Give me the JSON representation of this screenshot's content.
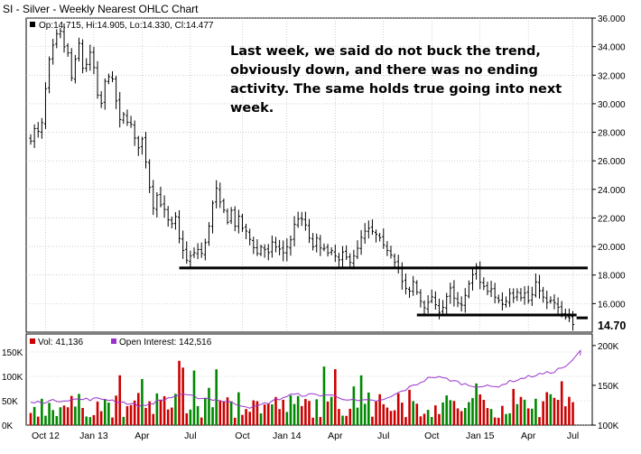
{
  "chart_data": {
    "type": "ohlc",
    "title": "SI - Silver - Weekly Nearest OHLC Chart",
    "ohlc_label": "Op:14.715, Hi:14.905, Lo:14.330, Cl:14.477",
    "last_price_tag": "14.70",
    "price_axis": {
      "ticks": [
        "36.000",
        "34.000",
        "32.000",
        "30.000",
        "28.000",
        "26.000",
        "24.000",
        "22.000",
        "20.000",
        "18.000",
        "16.000"
      ],
      "tick_values": [
        36,
        34,
        32,
        30,
        28,
        26,
        24,
        22,
        20,
        18,
        16
      ],
      "ylim": [
        14.0,
        36.0
      ]
    },
    "volume_axis_left": {
      "ticks": [
        "150K",
        "100K",
        "50K",
        "0K"
      ],
      "tick_values": [
        150000,
        100000,
        50000,
        0
      ],
      "ylim": [
        0,
        150000
      ]
    },
    "oi_axis_right": {
      "ticks": [
        "200K",
        "150K",
        "100K"
      ],
      "tick_values": [
        200000,
        150000,
        100000
      ],
      "ylim": [
        100000,
        210000
      ]
    },
    "x_labels": [
      "Oct 12",
      "Jan 13",
      "Apr",
      "Jul",
      "Oct",
      "Jan 14",
      "Apr",
      "Jul",
      "Oct",
      "Jan 15",
      "Apr",
      "Jul"
    ],
    "x_label_weeks": [
      4,
      17,
      30,
      43,
      57,
      69,
      82,
      95,
      108,
      121,
      134,
      146
    ],
    "total_weeks": 151,
    "price_anchors": [
      [
        0,
        27.5
      ],
      [
        1,
        28.2
      ],
      [
        2,
        28.0
      ],
      [
        3,
        28.6
      ],
      [
        4,
        31.0
      ],
      [
        5,
        33.0
      ],
      [
        6,
        34.0
      ],
      [
        7,
        34.8
      ],
      [
        8,
        35.0
      ],
      [
        9,
        34.0
      ],
      [
        10,
        33.5
      ],
      [
        11,
        31.8
      ],
      [
        12,
        33.0
      ],
      [
        13,
        34.2
      ],
      [
        14,
        32.5
      ],
      [
        15,
        32.8
      ],
      [
        16,
        33.5
      ],
      [
        17,
        32.5
      ],
      [
        18,
        30.5
      ],
      [
        19,
        30.0
      ],
      [
        20,
        31.5
      ],
      [
        21,
        32.0
      ],
      [
        22,
        31.6
      ],
      [
        23,
        30.2
      ],
      [
        24,
        28.8
      ],
      [
        25,
        29.2
      ],
      [
        26,
        28.8
      ],
      [
        27,
        28.5
      ],
      [
        28,
        27.5
      ],
      [
        29,
        27.0
      ],
      [
        30,
        27.5
      ],
      [
        31,
        26.0
      ],
      [
        32,
        24.2
      ],
      [
        33,
        22.8
      ],
      [
        34,
        23.6
      ],
      [
        35,
        23.0
      ],
      [
        36,
        22.5
      ],
      [
        37,
        21.8
      ],
      [
        38,
        21.5
      ],
      [
        39,
        22.0
      ],
      [
        40,
        20.5
      ],
      [
        41,
        19.8
      ],
      [
        42,
        19.0
      ],
      [
        43,
        19.3
      ],
      [
        44,
        19.5
      ],
      [
        45,
        19.8
      ],
      [
        46,
        19.5
      ],
      [
        47,
        20.2
      ],
      [
        48,
        21.5
      ],
      [
        49,
        23.0
      ],
      [
        50,
        24.0
      ],
      [
        51,
        23.0
      ],
      [
        52,
        22.5
      ],
      [
        53,
        21.8
      ],
      [
        54,
        22.5
      ],
      [
        55,
        21.5
      ],
      [
        56,
        22.0
      ],
      [
        57,
        21.3
      ],
      [
        58,
        21.0
      ],
      [
        59,
        20.5
      ],
      [
        60,
        20.0
      ],
      [
        61,
        19.5
      ],
      [
        62,
        20.0
      ],
      [
        63,
        19.8
      ],
      [
        64,
        19.5
      ],
      [
        65,
        20.2
      ],
      [
        66,
        20.0
      ],
      [
        67,
        19.8
      ],
      [
        68,
        19.5
      ],
      [
        69,
        20.0
      ],
      [
        70,
        20.5
      ],
      [
        71,
        21.5
      ],
      [
        72,
        22.0
      ],
      [
        73,
        21.8
      ],
      [
        74,
        21.5
      ],
      [
        75,
        20.5
      ],
      [
        76,
        20.0
      ],
      [
        77,
        20.5
      ],
      [
        78,
        19.8
      ],
      [
        79,
        20.0
      ],
      [
        80,
        19.5
      ],
      [
        81,
        19.6
      ],
      [
        82,
        19.3
      ],
      [
        83,
        19.0
      ],
      [
        84,
        19.5
      ],
      [
        85,
        19.2
      ],
      [
        86,
        19.0
      ],
      [
        87,
        19.4
      ],
      [
        88,
        19.8
      ],
      [
        89,
        20.6
      ],
      [
        90,
        21.0
      ],
      [
        91,
        21.2
      ],
      [
        92,
        21.0
      ],
      [
        93,
        20.8
      ],
      [
        94,
        20.5
      ],
      [
        95,
        20.0
      ],
      [
        96,
        19.8
      ],
      [
        97,
        19.5
      ],
      [
        98,
        19.0
      ],
      [
        99,
        18.5
      ],
      [
        100,
        17.5
      ],
      [
        101,
        17.0
      ],
      [
        102,
        16.8
      ],
      [
        103,
        17.5
      ],
      [
        104,
        16.8
      ],
      [
        105,
        16.2
      ],
      [
        106,
        15.8
      ],
      [
        107,
        16.0
      ],
      [
        108,
        16.5
      ],
      [
        109,
        15.8
      ],
      [
        110,
        15.5
      ],
      [
        111,
        15.8
      ],
      [
        112,
        16.5
      ],
      [
        113,
        17.0
      ],
      [
        114,
        16.3
      ],
      [
        115,
        16.0
      ],
      [
        116,
        15.8
      ],
      [
        117,
        16.5
      ],
      [
        118,
        17.5
      ],
      [
        119,
        18.0
      ],
      [
        120,
        18.5
      ],
      [
        121,
        17.5
      ],
      [
        122,
        17.2
      ],
      [
        123,
        16.8
      ],
      [
        124,
        17.0
      ],
      [
        125,
        16.5
      ],
      [
        126,
        16.2
      ],
      [
        127,
        16.0
      ],
      [
        128,
        16.2
      ],
      [
        129,
        16.8
      ],
      [
        130,
        16.5
      ],
      [
        131,
        16.9
      ],
      [
        132,
        16.5
      ],
      [
        133,
        16.7
      ],
      [
        134,
        16.2
      ],
      [
        135,
        16.6
      ],
      [
        136,
        17.4
      ],
      [
        137,
        17.0
      ],
      [
        138,
        16.4
      ],
      [
        139,
        16.0
      ],
      [
        140,
        16.2
      ],
      [
        141,
        16.0
      ],
      [
        142,
        15.7
      ],
      [
        143,
        15.2
      ],
      [
        144,
        15.0
      ],
      [
        145,
        14.9
      ],
      [
        146,
        14.48
      ]
    ],
    "support_lines": [
      {
        "name": "upper-support",
        "from_week": 40,
        "to_week": 150,
        "value": 18.5
      },
      {
        "name": "lower-support",
        "from_week": 104,
        "to_week": 147,
        "value": 15.2
      },
      {
        "name": "tag-line",
        "from_week": 147,
        "to_week": 150,
        "value": 15.0
      }
    ],
    "volume_label": "Vol: 41,136",
    "open_interest_label": "Open Interest: 142,516",
    "volume_colors": {
      "up": "#008800",
      "down": "#cc0000",
      "oi_line": "#9933cc"
    },
    "oi_anchors": [
      [
        0,
        128000
      ],
      [
        10,
        132000
      ],
      [
        20,
        133000
      ],
      [
        30,
        124000
      ],
      [
        40,
        138000
      ],
      [
        50,
        132000
      ],
      [
        60,
        122000
      ],
      [
        70,
        138000
      ],
      [
        80,
        138000
      ],
      [
        88,
        130000
      ],
      [
        95,
        131000
      ],
      [
        108,
        161000
      ],
      [
        112,
        158000
      ],
      [
        118,
        150000
      ],
      [
        125,
        148000
      ],
      [
        130,
        156000
      ],
      [
        136,
        163000
      ],
      [
        140,
        166000
      ],
      [
        145,
        176000
      ],
      [
        148,
        193000
      ],
      [
        150,
        186000
      ],
      [
        151,
        145000
      ]
    ]
  },
  "annotation": {
    "text": "Last week, we said do not buck the trend, obviously down, and there was no ending activity.  The same holds true going into next week."
  },
  "colors": {
    "panel_border": "#000000",
    "grid": "#999999",
    "price_bar": "#000000"
  }
}
